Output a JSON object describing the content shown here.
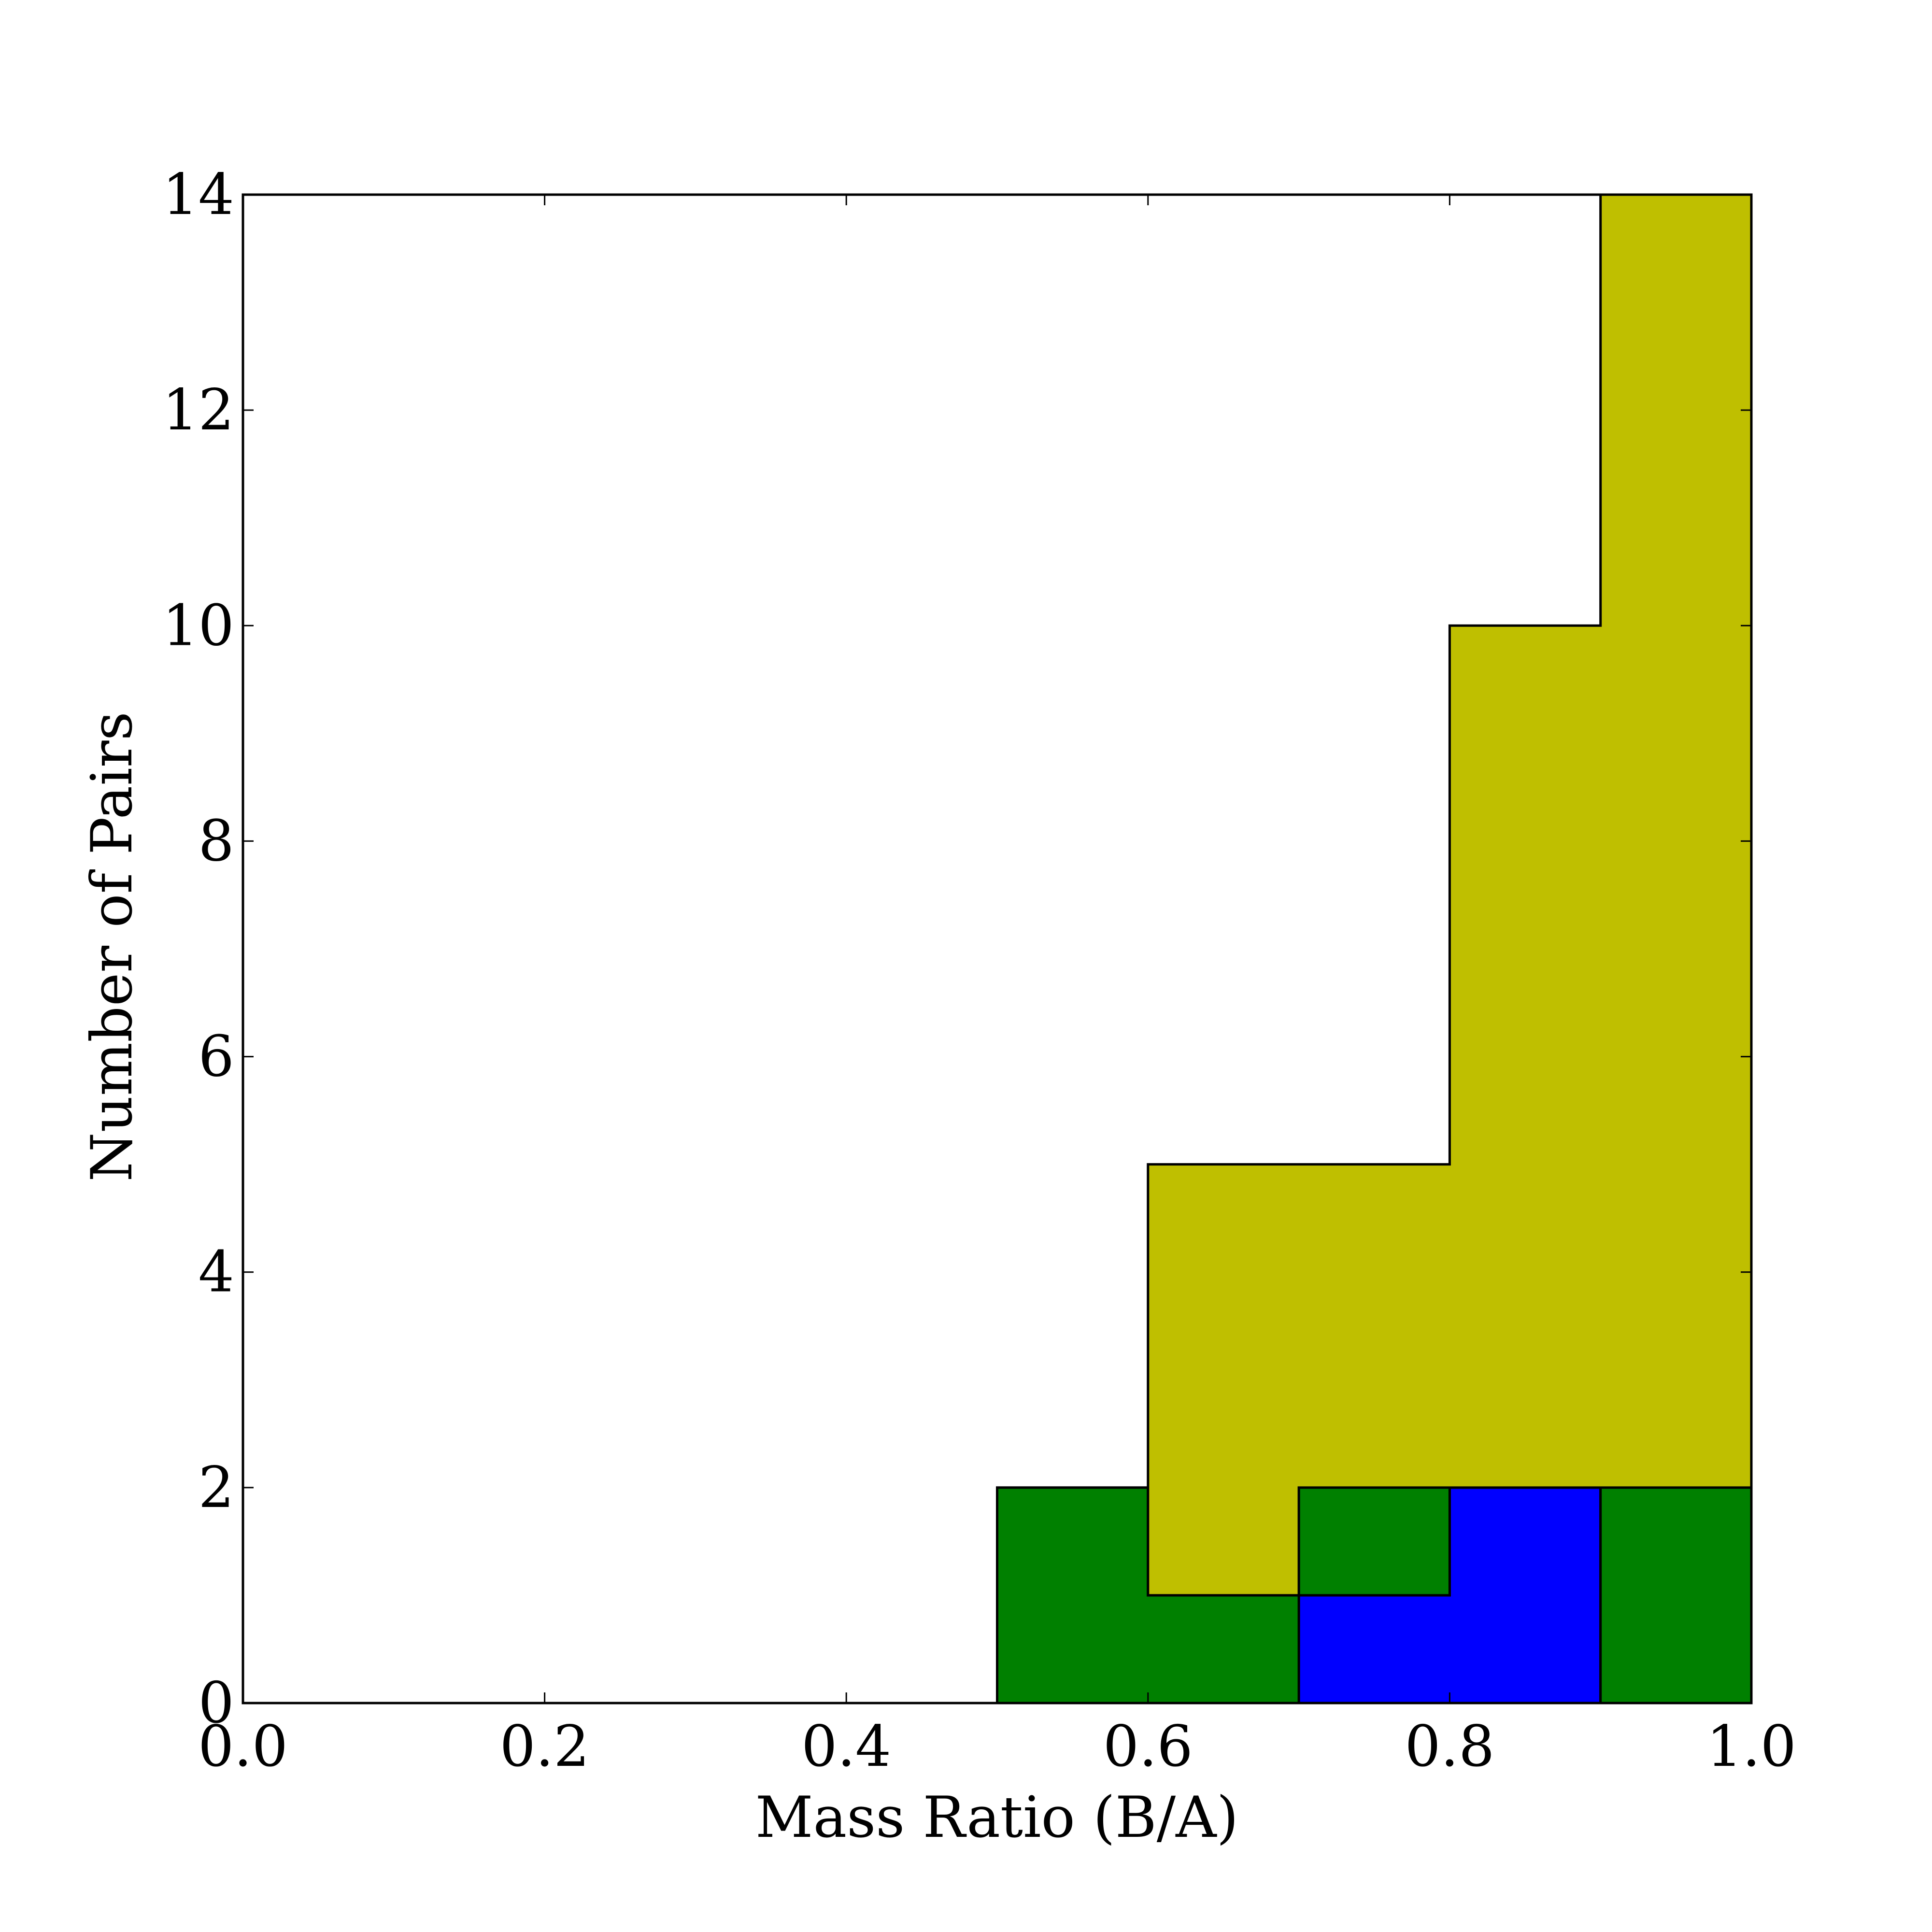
{
  "chart_data": {
    "type": "bar",
    "title": "",
    "xlabel": "Mass Ratio (B/A)",
    "ylabel": "Number of Pairs",
    "xlim": [
      0.0,
      1.0
    ],
    "ylim": [
      0,
      14
    ],
    "xticks": [
      "0.0",
      "0.2",
      "0.4",
      "0.6",
      "0.8",
      "1.0"
    ],
    "yticks": [
      "0",
      "2",
      "4",
      "6",
      "8",
      "10",
      "12",
      "14"
    ],
    "bin_edges": [
      0.0,
      0.1,
      0.2,
      0.3,
      0.4,
      0.5,
      0.6,
      0.7,
      0.8,
      0.9,
      1.0
    ],
    "stacked": true,
    "grid": false,
    "series": [
      {
        "color": "#0000ff",
        "values": [
          0,
          0,
          0,
          0,
          0,
          0,
          0,
          1,
          2,
          0
        ]
      },
      {
        "color": "#008000",
        "values": [
          0,
          0,
          0,
          0,
          0,
          2,
          1,
          1,
          0,
          2
        ]
      },
      {
        "color": "#bfbf00",
        "values": [
          0,
          0,
          0,
          0,
          0,
          0,
          4,
          3,
          8,
          12
        ]
      }
    ]
  }
}
